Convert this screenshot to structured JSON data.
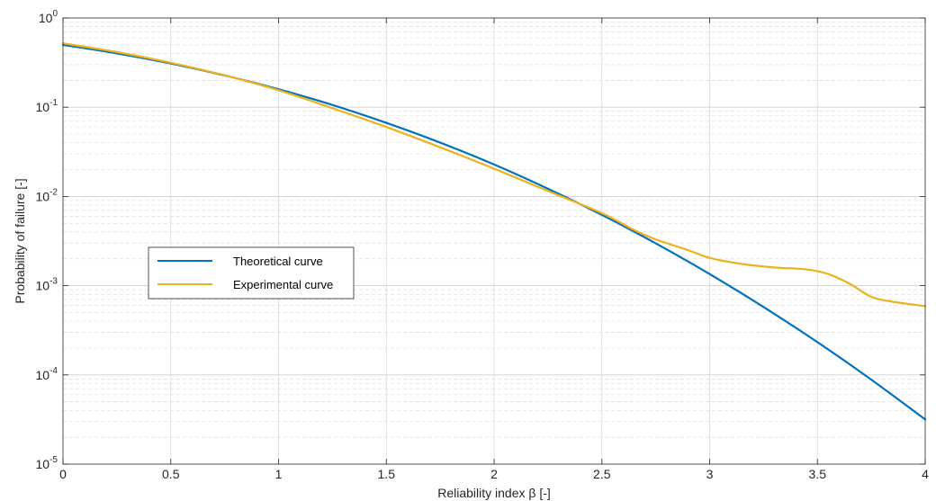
{
  "chart_data": {
    "type": "line",
    "title": "",
    "xlabel": "Reliability index β [-]",
    "ylabel": "Probability of failure [-]",
    "xlim": [
      0,
      4
    ],
    "ylim": [
      1e-05,
      1
    ],
    "yscale": "log",
    "grid": true,
    "minor_grid": true,
    "legend_position": "middle-left",
    "x_ticks": [
      "0",
      "0.5",
      "1",
      "1.5",
      "2",
      "2.5",
      "3",
      "3.5",
      "4"
    ],
    "y_ticks": [
      {
        "base": "10",
        "exp": "0",
        "value": 1
      },
      {
        "base": "10",
        "exp": "-1",
        "value": 0.1
      },
      {
        "base": "10",
        "exp": "-2",
        "value": 0.01
      },
      {
        "base": "10",
        "exp": "-3",
        "value": 0.001
      },
      {
        "base": "10",
        "exp": "-4",
        "value": 0.0001
      },
      {
        "base": "10",
        "exp": "-5",
        "value": 1e-05
      }
    ],
    "series": [
      {
        "name": "Theoretical curve",
        "color": "#0072BD",
        "x": [
          0,
          0.25,
          0.5,
          0.75,
          1,
          1.25,
          1.5,
          1.75,
          2,
          2.25,
          2.5,
          2.75,
          3,
          3.25,
          3.5,
          3.75,
          4
        ],
        "y": [
          0.5,
          0.401,
          0.309,
          0.227,
          0.159,
          0.106,
          0.0668,
          0.0401,
          0.0228,
          0.0122,
          0.00621,
          0.00298,
          0.00135,
          0.000577,
          0.000233,
          8.84e-05,
          3.17e-05
        ]
      },
      {
        "name": "Experimental curve",
        "color": "#EDB120",
        "x": [
          0,
          0.25,
          0.5,
          0.75,
          1,
          1.25,
          1.5,
          1.75,
          2,
          2.25,
          2.5,
          2.65,
          2.75,
          2.9,
          3,
          3.15,
          3.3,
          3.45,
          3.55,
          3.65,
          3.75,
          3.85,
          4
        ],
        "y": [
          0.52,
          0.415,
          0.315,
          0.228,
          0.155,
          0.0975,
          0.06,
          0.0355,
          0.0205,
          0.0115,
          0.0065,
          0.0042,
          0.0033,
          0.0025,
          0.00205,
          0.00175,
          0.0016,
          0.00152,
          0.00135,
          0.00105,
          0.00075,
          0.00066,
          0.00059
        ]
      }
    ]
  }
}
